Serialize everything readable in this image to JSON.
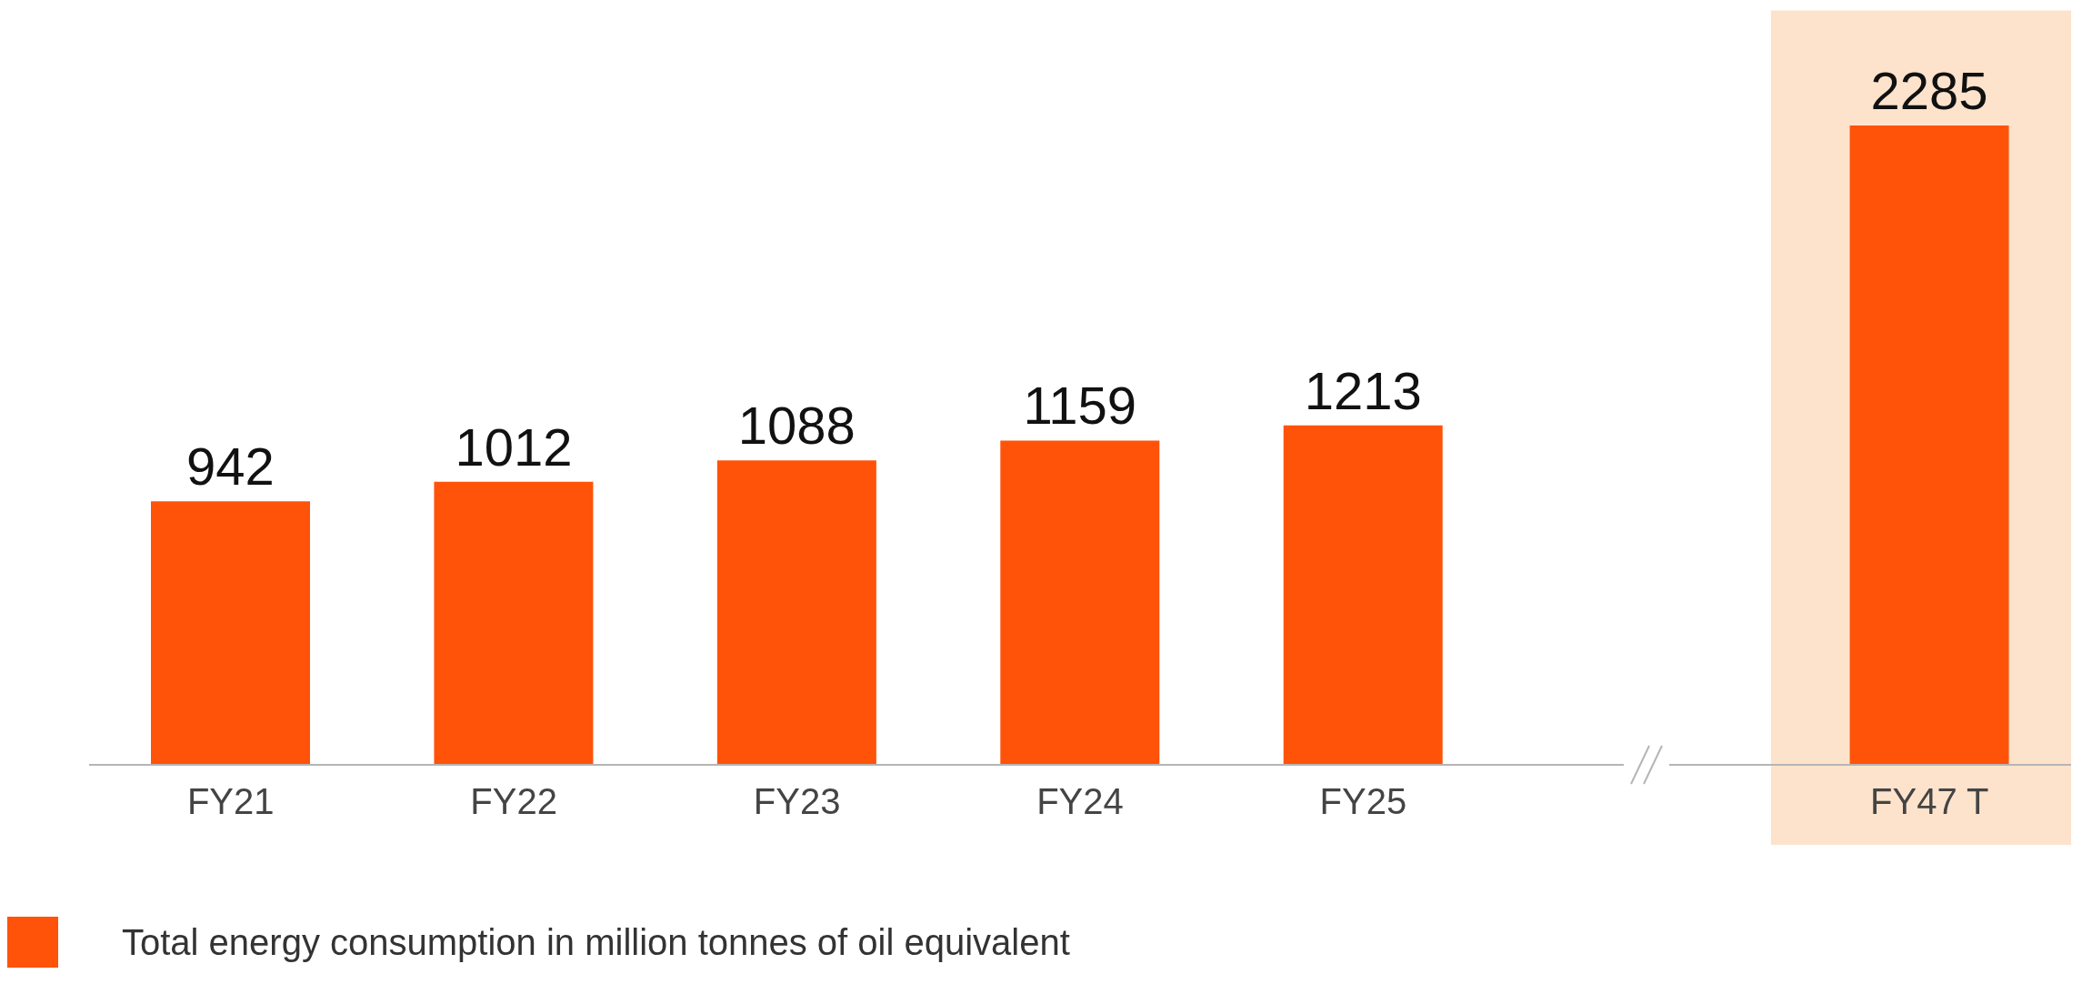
{
  "chart_data": {
    "type": "bar",
    "categories": [
      "FY21",
      "FY22",
      "FY23",
      "FY24",
      "FY25",
      null,
      "FY47 T"
    ],
    "series": [
      {
        "name": "Total energy consumption in million tonnes of oil equivalent",
        "color": "#ff5309",
        "values": [
          942,
          1012,
          1088,
          1159,
          1213,
          null,
          2285
        ]
      }
    ],
    "data_labels": true,
    "legend": "bottom left",
    "bands": [
      {
        "axis": "x",
        "from": "FY47 T",
        "to": "FY47 T",
        "color": "#fde3cc"
      }
    ]
  }
}
